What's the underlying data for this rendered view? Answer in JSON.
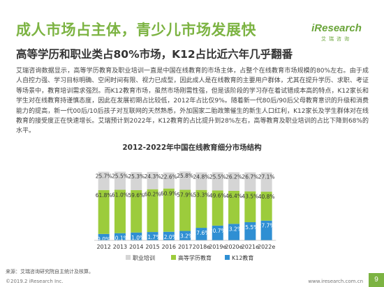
{
  "header": {
    "title": "成人市场占主体，青少儿市场发展快",
    "subtitle": "高等学历和职业类占80%市场，K12占比近六年几乎翻番"
  },
  "logo": {
    "word": "iResearch",
    "cn": "艾瑞咨询"
  },
  "body_text": "艾瑞咨询数据显示，高等学历教育及职业培训一直是中国在线教育的市场主体，占整个在线教育市场规模的80%左右。由于成人自控力强、学习目标明确、空闲时间有限、视力已成型，因此成人是在线教育的主要用户群体，尤其在提升学历、求职、考证等场景中，教育培训需求强烈。而K12教育市场，虽然市场刚需性强，但是该阶段的学习存在着试错成本高的特点，K12家长和学生对在线教育持谨慎态度，因此在发展初期占比较低，2012年占比仅9%。随着新一代80后/90后父母教育意识的升级和消费能力的提高，新一代00后/10后孩子对互联网的天然熟悉，外加国家二胎政策催生的新生人口红利，K12家长及学生群体对在线教育的接受度正在快速增长。艾瑞预计到2022年，K12教育的占比提升到28%左右，高等教育及职业培训的占比下降到68%的水平。",
  "chart_data": {
    "type": "bar",
    "stacked": true,
    "title": "2012-2022年中国在线教育细分市场结构",
    "categories": [
      "2012",
      "2013",
      "2014",
      "2015",
      "2016",
      "2017",
      "2018e",
      "2019e",
      "2020e",
      "2021e",
      "2022e"
    ],
    "series": [
      {
        "name": "K12教育",
        "color": "#2f8fd3",
        "values": [
          9.0,
          10.1,
          11.0,
          11.7,
          12.0,
          13.2,
          17.6,
          20.7,
          23.2,
          25.5,
          27.7
        ]
      },
      {
        "name": "高等学历教育",
        "color": "#9ccc3c",
        "values": [
          61.8,
          61.0,
          59.6,
          60.2,
          60.9,
          57.9,
          53.3,
          49.6,
          46.4,
          43.5,
          40.8
        ]
      },
      {
        "name": "职业培训",
        "color": "#d5d5d5",
        "values": [
          25.7,
          25.5,
          25.3,
          24.3,
          22.6,
          25.8,
          24.8,
          25.5,
          26.2,
          26.7,
          27.1
        ]
      }
    ],
    "legend_order": [
      "职业培训",
      "高等学历教育",
      "K12教育"
    ],
    "legend_position": "bottom",
    "ylim": [
      0,
      100
    ]
  },
  "source": "来源：艾瑞咨询研究院自主统计及核算。",
  "footer": {
    "copyright": "©2019.2 iResearch Inc.",
    "url": "www.iresearch.com.cn",
    "page": "9"
  }
}
